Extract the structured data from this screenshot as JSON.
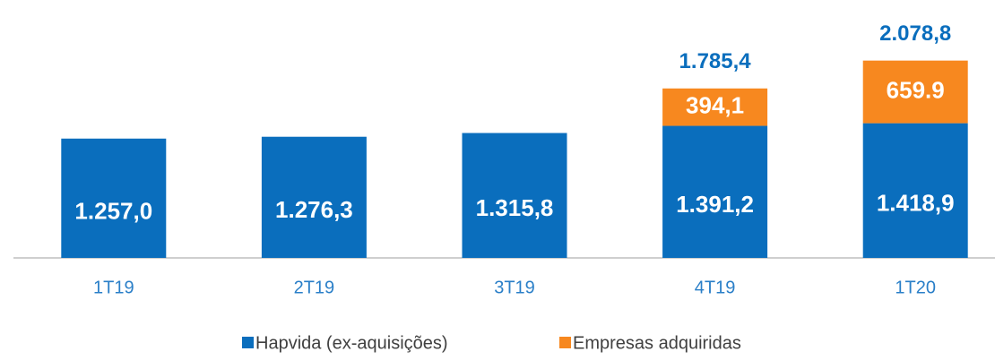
{
  "chart_data": {
    "type": "stacked_bar",
    "categories": [
      "1T19",
      "2T19",
      "3T19",
      "4T19",
      "1T20"
    ],
    "series": [
      {
        "name": "Hapvida (ex-aquisições)",
        "color": "#0a6ebd",
        "values": [
          1257.0,
          1276.3,
          1315.8,
          1391.2,
          1418.9
        ],
        "value_labels": [
          "1.257,0",
          "1.276,3",
          "1.315,8",
          "1.391,2",
          "1.418,9"
        ]
      },
      {
        "name": "Empresas adquiridas",
        "color": "#f7881f",
        "values": [
          null,
          null,
          null,
          394.1,
          659.9
        ],
        "value_labels": [
          null,
          null,
          null,
          "394,1",
          "659.9"
        ]
      }
    ],
    "totals": [
      null,
      null,
      null,
      1785.4,
      2078.8
    ],
    "total_labels": [
      null,
      null,
      null,
      "1.785,4",
      "2.078,8"
    ],
    "ylim": [
      0,
      2500
    ],
    "legend": "bottom"
  }
}
